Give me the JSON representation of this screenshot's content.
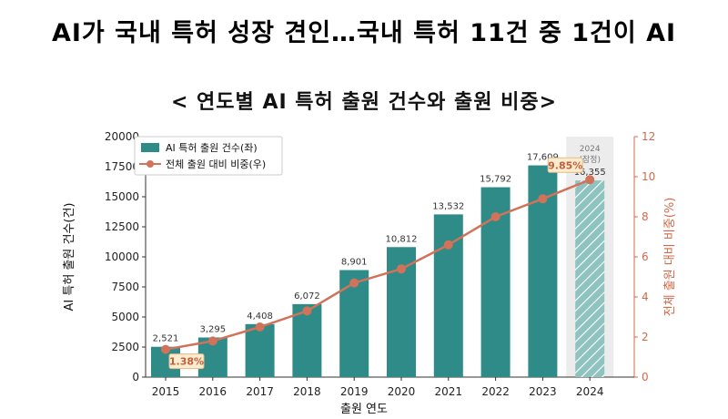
{
  "headline": "AI가 국내 특허 성장 견인…국내 특허 11건 중 1건이 AI",
  "subheadline": "< 연도별 AI 특허 출원 건수와 출원 비중>",
  "chart_data": {
    "type": "bar",
    "categories": [
      "2015",
      "2016",
      "2017",
      "2018",
      "2019",
      "2020",
      "2021",
      "2022",
      "2023",
      "2024"
    ],
    "series": [
      {
        "name": "AI 특허 출원 건수(좌)",
        "type": "bar",
        "axis": "left",
        "values": [
          2521,
          3295,
          4408,
          6072,
          8901,
          10812,
          13532,
          15792,
          17609,
          16355
        ],
        "value_labels": [
          "2,521",
          "3,295",
          "4,408",
          "6,072",
          "8,901",
          "10,812",
          "13,532",
          "15,792",
          "17,609",
          "16,355"
        ],
        "color": "#2e8b87",
        "estimated_color": "#8fc3c0"
      },
      {
        "name": "전체 출원 대비 비중(우)",
        "type": "line",
        "axis": "right",
        "values": [
          1.38,
          1.8,
          2.5,
          3.3,
          4.7,
          5.4,
          6.6,
          8.0,
          8.9,
          9.85
        ],
        "color": "#d0735a"
      }
    ],
    "callouts": [
      {
        "index": 0,
        "text": "1.38%"
      },
      {
        "index": 9,
        "text": "9.85%"
      }
    ],
    "estimated_note": {
      "index": 9,
      "lines": [
        "2024",
        "(잠정)"
      ]
    },
    "xlabel": "출원 연도",
    "ylabel": "AI 특허 출원 건수(건)",
    "y2label": "전체 출원 대비 비중(%)",
    "ylim": [
      0,
      20000
    ],
    "yticks": [
      0,
      2500,
      5000,
      7500,
      10000,
      12500,
      15000,
      17500,
      20000
    ],
    "y2lim": [
      0,
      12
    ],
    "y2ticks": [
      0,
      2,
      4,
      6,
      8,
      10,
      12
    ],
    "legend_position": "top-left",
    "grid": false
  }
}
